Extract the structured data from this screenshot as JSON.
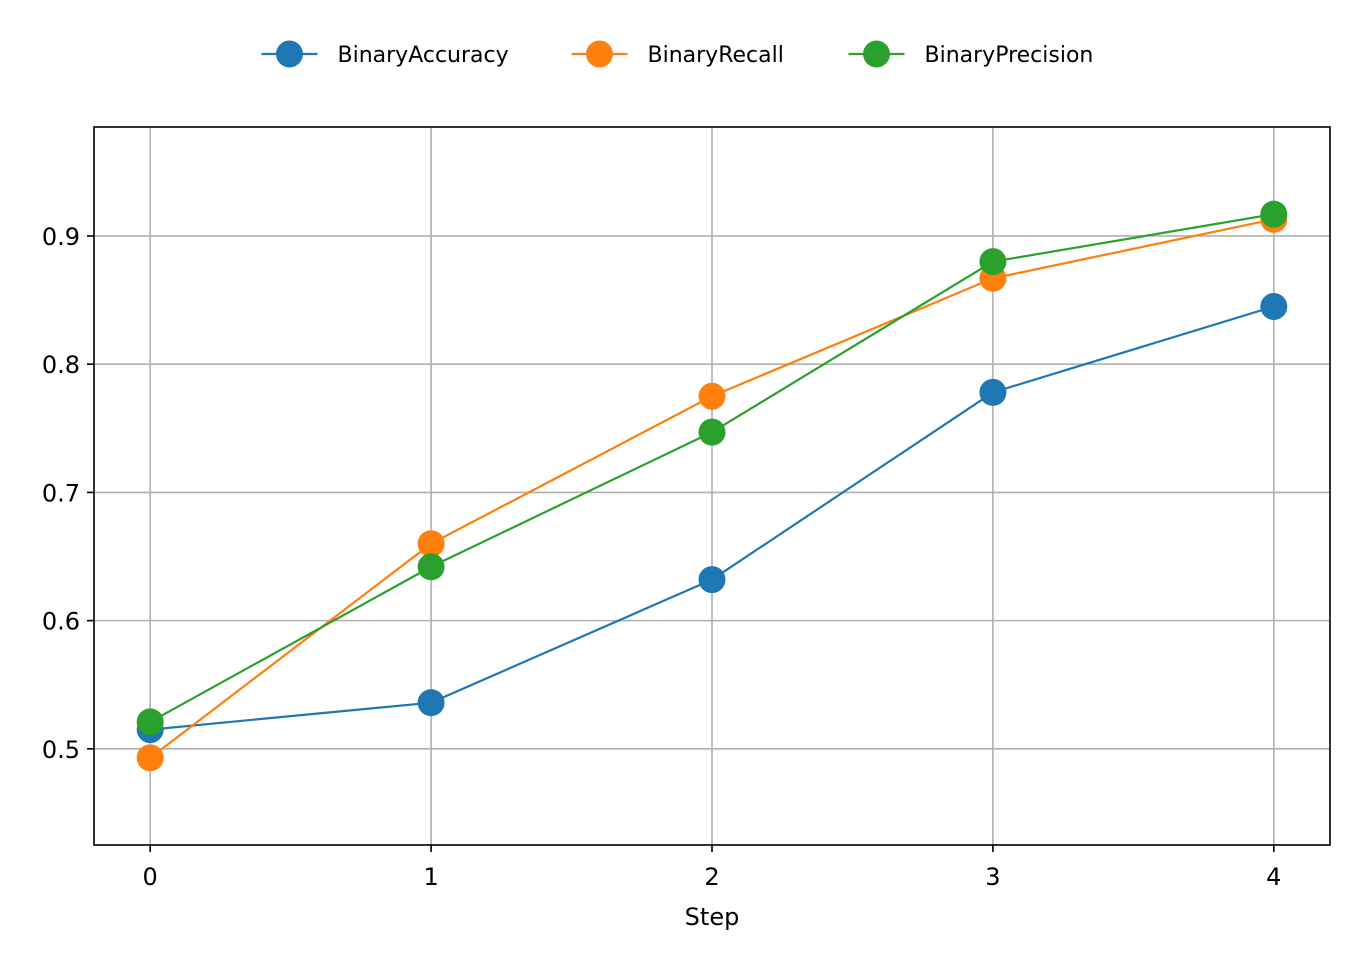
{
  "chart_data": {
    "type": "line",
    "title": "",
    "xlabel": "Step",
    "ylabel": "",
    "x": [
      0,
      1,
      2,
      3,
      4
    ],
    "xticks": [
      "0",
      "1",
      "2",
      "3",
      "4"
    ],
    "yticks": [
      "0.5",
      "0.6",
      "0.7",
      "0.8",
      "0.9"
    ],
    "xlim": [
      -0.2,
      4.2
    ],
    "ylim": [
      0.425,
      0.985
    ],
    "grid": true,
    "legend_position": "top-center",
    "series": [
      {
        "name": "BinaryAccuracy",
        "color": "#1f77b4",
        "values": [
          0.515,
          0.536,
          0.632,
          0.778,
          0.845
        ]
      },
      {
        "name": "BinaryRecall",
        "color": "#ff7f0e",
        "values": [
          0.493,
          0.66,
          0.775,
          0.867,
          0.913
        ]
      },
      {
        "name": "BinaryPrecision",
        "color": "#2ca02c",
        "values": [
          0.521,
          0.642,
          0.747,
          0.88,
          0.917
        ]
      }
    ]
  }
}
